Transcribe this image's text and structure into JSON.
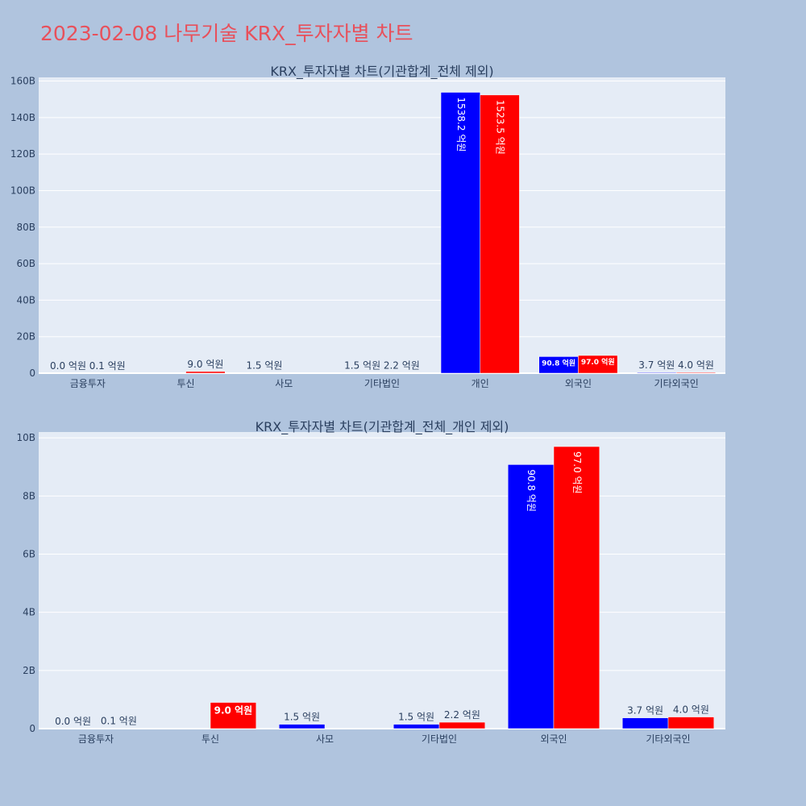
{
  "page_title": "2023-02-08 나무기술 KRX_투자자별 차트",
  "colors": {
    "background": "#b0c4de",
    "plot_bg": "#e5ecf6",
    "title": "#e8505b",
    "series_a": "#0000ff",
    "series_b": "#ff0000",
    "text": "#2a3f5f"
  },
  "chart_data": [
    {
      "type": "bar",
      "title": "KRX_투자자별 차트(기관합계_전체 제외)",
      "categories": [
        "금융투자",
        "투신",
        "사모",
        "기타법인",
        "개인",
        "외국인",
        "기타외국인"
      ],
      "series": [
        {
          "color": "#0000ff",
          "values": [
            0.0,
            0.0,
            0.15,
            0.15,
            153.82,
            9.08,
            0.37
          ],
          "labels": [
            "0.0 억원",
            "",
            "1.5 억원",
            "1.5 억원",
            "1538.2 억원",
            "90.8 억원",
            "3.7 억원"
          ]
        },
        {
          "color": "#ff0000",
          "values": [
            0.01,
            0.9,
            0.0,
            0.22,
            152.35,
            9.7,
            0.4
          ],
          "labels": [
            "0.1 억원",
            "9.0 억원",
            "",
            "2.2 억원",
            "1523.5 억원",
            "97.0 억원",
            "4.0 억원"
          ]
        }
      ],
      "yticks": [
        0,
        20,
        40,
        60,
        80,
        100,
        120,
        140,
        160
      ],
      "ytick_labels": [
        "0",
        "20B",
        "40B",
        "60B",
        "80B",
        "100B",
        "120B",
        "140B",
        "160B"
      ],
      "ylim": [
        0,
        162
      ],
      "grid": true
    },
    {
      "type": "bar",
      "title": "KRX_투자자별 차트(기관합계_전체_개인 제외)",
      "categories": [
        "금융투자",
        "투신",
        "사모",
        "기타법인",
        "외국인",
        "기타외국인"
      ],
      "series": [
        {
          "color": "#0000ff",
          "values": [
            0.0,
            0.0,
            0.15,
            0.15,
            9.08,
            0.37
          ],
          "labels": [
            "0.0 억원",
            "",
            "1.5 억원",
            "1.5 억원",
            "90.8 억원",
            "3.7 억원"
          ]
        },
        {
          "color": "#ff0000",
          "values": [
            0.01,
            0.9,
            0.0,
            0.22,
            9.7,
            0.4
          ],
          "labels": [
            "0.1 억원",
            "9.0 억원",
            "",
            "2.2 억원",
            "97.0 억원",
            "4.0 억원"
          ]
        }
      ],
      "yticks": [
        0,
        2,
        4,
        6,
        8,
        10
      ],
      "ytick_labels": [
        "0",
        "2B",
        "4B",
        "6B",
        "8B",
        "10B"
      ],
      "ylim": [
        0,
        10.2
      ],
      "grid": true
    }
  ]
}
